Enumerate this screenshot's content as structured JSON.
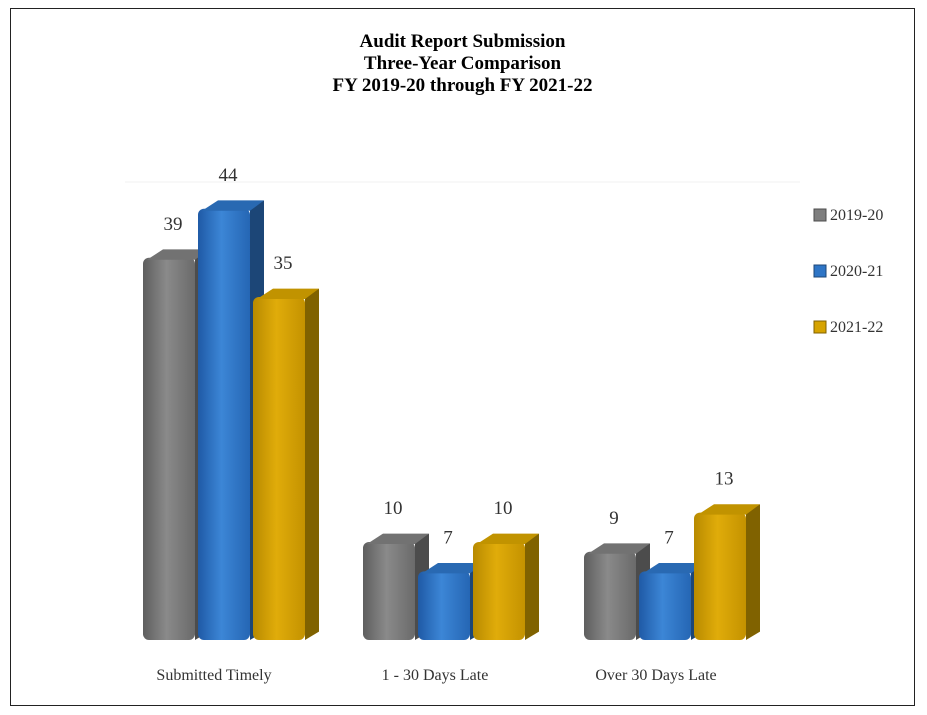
{
  "chart_data": {
    "type": "bar",
    "title_lines": [
      "Audit Report Submission",
      "Three-Year Comparison",
      "FY 2019-20 through FY 2021-22"
    ],
    "categories": [
      "Submitted Timely",
      "1 - 30 Days Late",
      "Over 30 Days Late"
    ],
    "series": [
      {
        "name": "2019-20",
        "values": [
          39,
          10,
          9
        ],
        "color": "#7f7f7f"
      },
      {
        "name": "2020-21",
        "values": [
          44,
          7,
          7
        ],
        "color": "#2e75c6"
      },
      {
        "name": "2021-22",
        "values": [
          35,
          10,
          13
        ],
        "color": "#d6a300"
      }
    ],
    "ylim": [
      0,
      48
    ],
    "legend_position": "right",
    "three_d": true
  }
}
